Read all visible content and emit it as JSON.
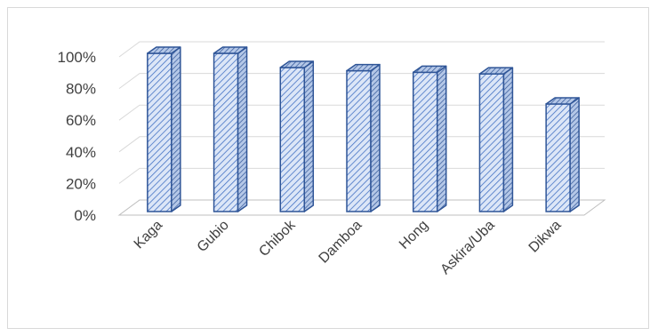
{
  "chart_data": {
    "type": "bar",
    "style": "3d-column",
    "title": "",
    "xlabel": "",
    "ylabel": "",
    "ylim": [
      0,
      100
    ],
    "y_ticks": [
      "0%",
      "20%",
      "40%",
      "60%",
      "80%",
      "100%"
    ],
    "grid": true,
    "legend": "none",
    "categories": [
      "Kaga",
      "Gubio",
      "Chibok",
      "Damboa",
      "Hong",
      "Askira/Uba",
      "Dikwa"
    ],
    "series": [
      {
        "values": [
          100,
          100,
          91,
          89,
          88,
          87,
          68
        ]
      }
    ],
    "colors": {
      "bar_fill": "#dce6f7",
      "bar_hatch": "#4472c4",
      "bar_edge": "#2f5597",
      "grid": "#d9d9d9",
      "text": "#404040"
    }
  }
}
